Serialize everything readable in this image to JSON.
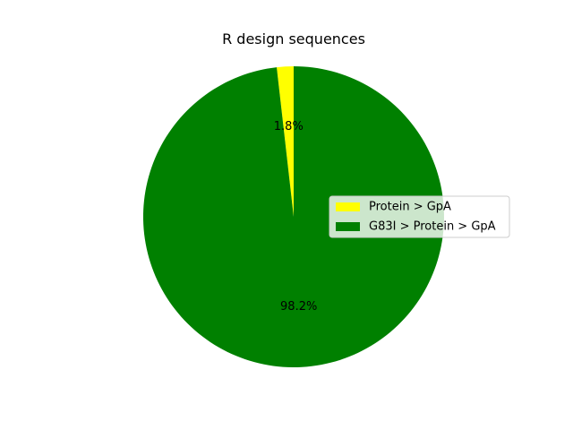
{
  "chart_data": {
    "type": "pie",
    "title": "R design sequences",
    "start_angle_deg": 90,
    "direction": "counterclockwise",
    "legend_position": "center-right",
    "slices": [
      {
        "label": "Protein > GpA",
        "value": 1.8,
        "pct_label": "1.8%",
        "color": "#ffff00"
      },
      {
        "label": "G83I > Protein > GpA",
        "value": 98.2,
        "pct_label": "98.2%",
        "color": "#008000"
      }
    ]
  }
}
